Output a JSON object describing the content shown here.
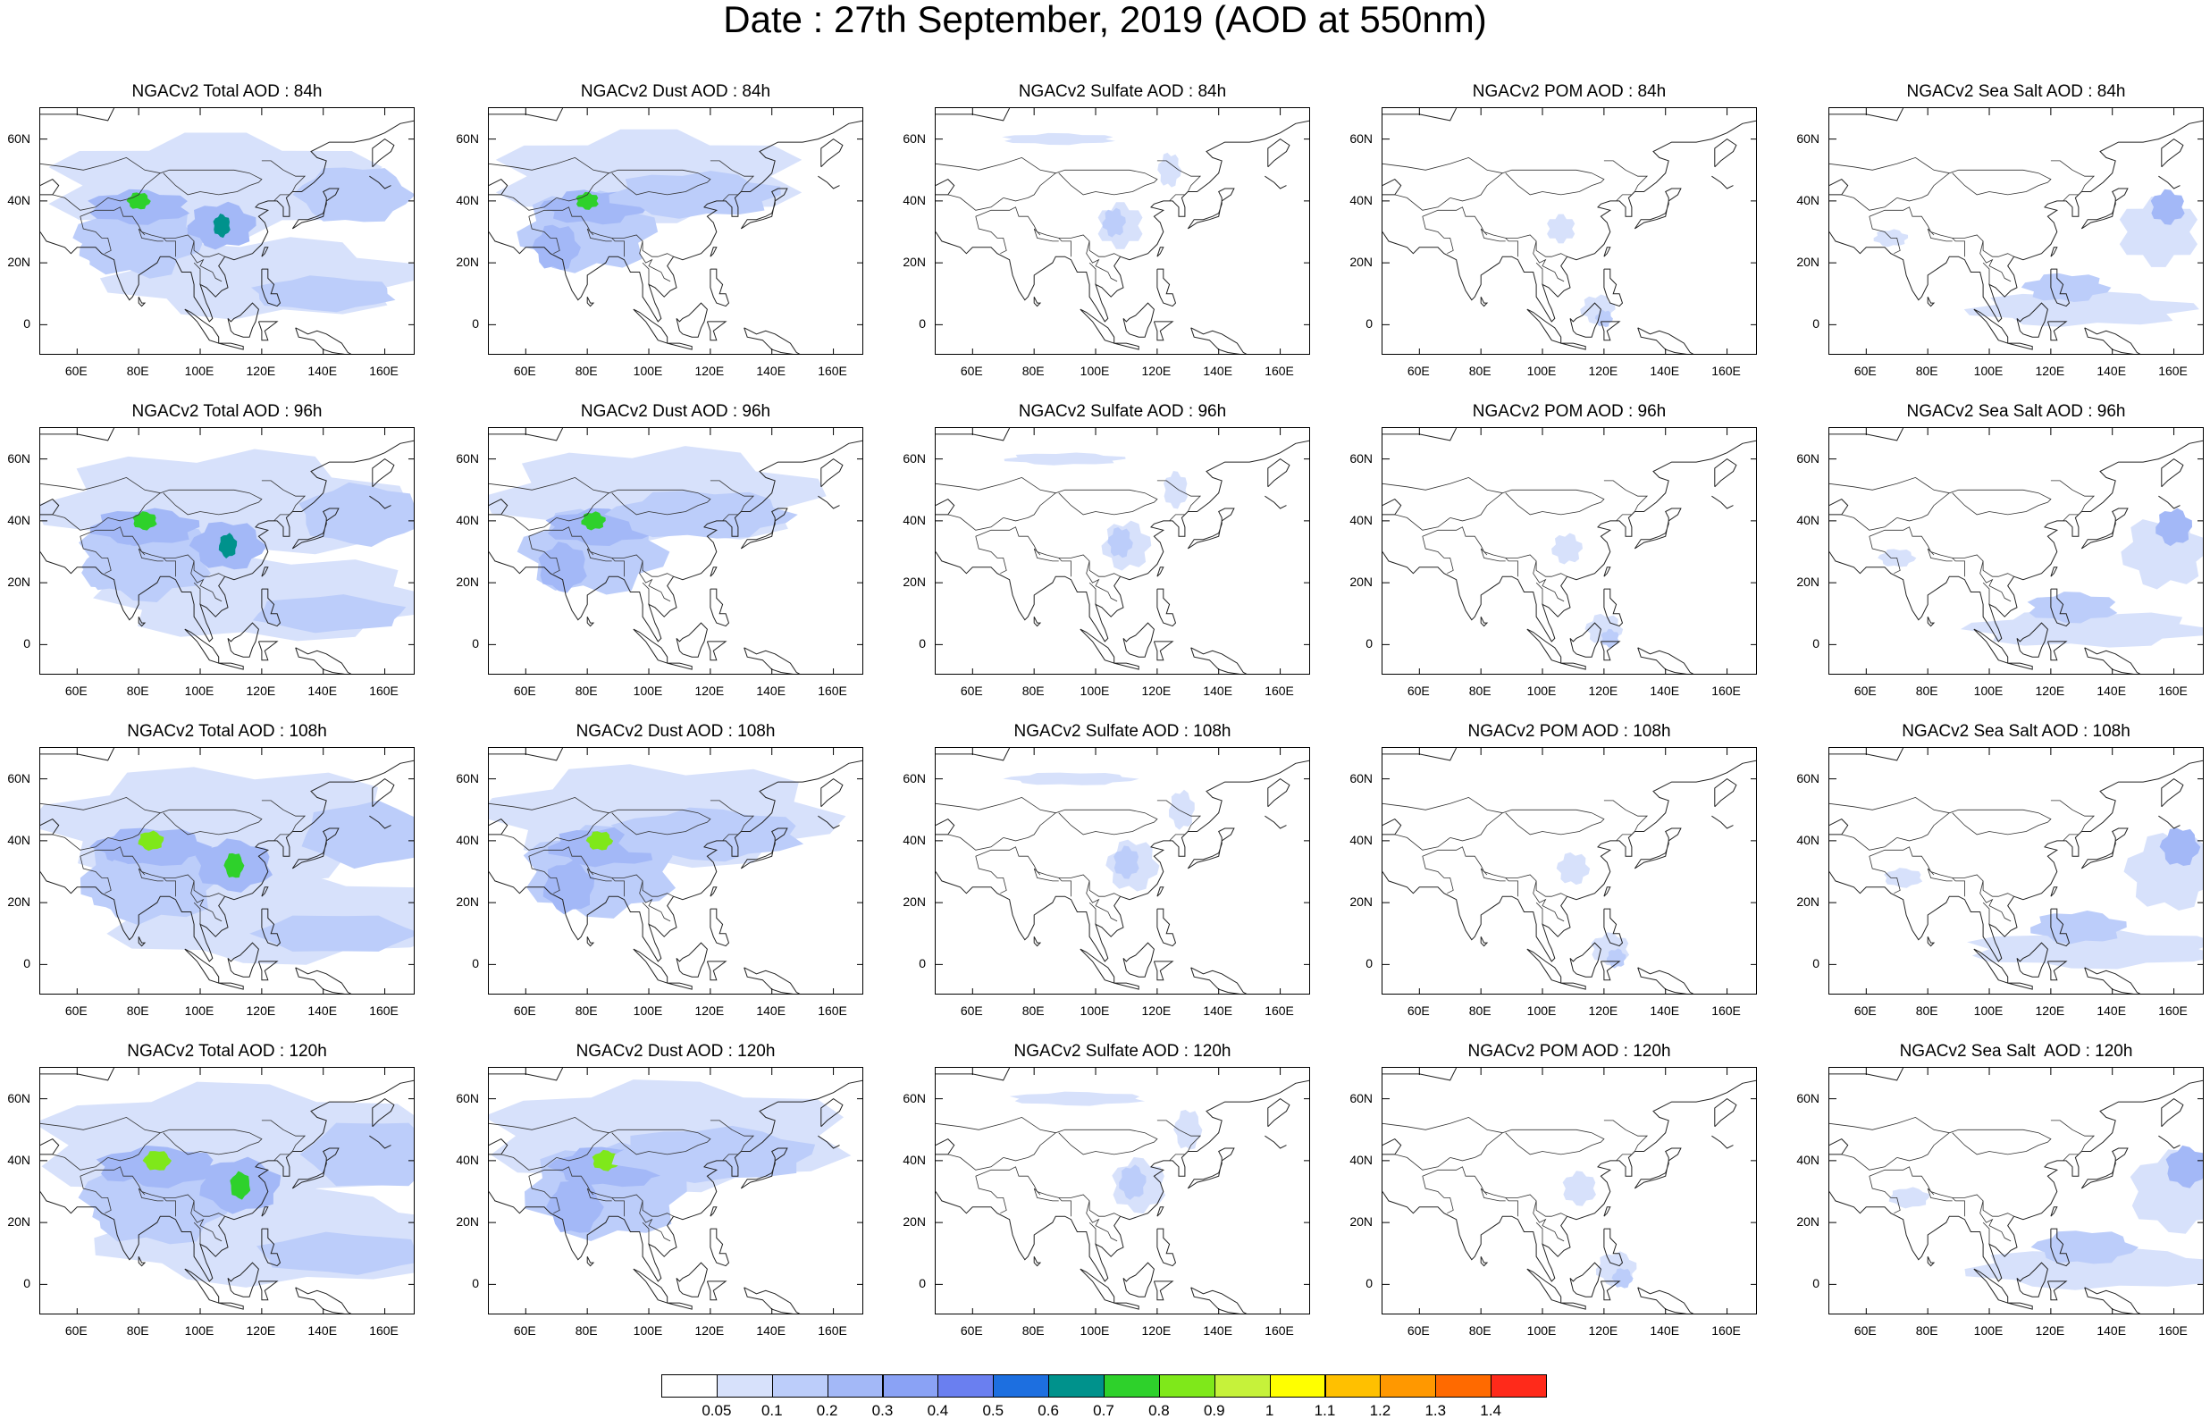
{
  "title": "Date : 27th September, 2019 (AOD at 550nm)",
  "lat_ticks": [
    "60N",
    "40N",
    "20N",
    "0"
  ],
  "lon_ticks": [
    "60E",
    "80E",
    "100E",
    "120E",
    "140E",
    "160E"
  ],
  "rows": [
    [
      "NGACv2 Total AOD : 84h",
      "NGACv2 Dust AOD : 84h",
      "NGACv2 Sulfate AOD : 84h",
      "NGACv2 POM AOD : 84h",
      "NGACv2 Sea Salt AOD : 84h"
    ],
    [
      "NGACv2 Total AOD : 96h",
      "NGACv2 Dust AOD : 96h",
      "NGACv2 Sulfate AOD : 96h",
      "NGACv2 POM AOD : 96h",
      "NGACv2 Sea Salt AOD : 96h"
    ],
    [
      "NGACv2 Total AOD : 108h",
      "NGACv2 Dust AOD : 108h",
      "NGACv2 Sulfate AOD : 108h",
      "NGACv2 POM AOD : 108h",
      "NGACv2 Sea Salt AOD : 108h"
    ],
    [
      "NGACv2 Total AOD : 120h",
      "NGACv2 Dust AOD : 120h",
      "NGACv2 Sulfate AOD : 120h",
      "NGACv2 POM AOD : 120h",
      "NGACv2 Sea Salt  AOD : 120h"
    ]
  ],
  "colorbar": {
    "labels": [
      "0.05",
      "0.1",
      "0.2",
      "0.3",
      "0.4",
      "0.5",
      "0.6",
      "0.7",
      "0.8",
      "0.9",
      "1",
      "1.1",
      "1.2",
      "1.3",
      "1.4"
    ],
    "colors": [
      "#ffffff",
      "#d7e1fb",
      "#bccdfa",
      "#a3b8f7",
      "#8aa2f5",
      "#6a7ff0",
      "#1d6fe0",
      "#00928c",
      "#2ed12b",
      "#7fe81a",
      "#c6f23a",
      "#ffff00",
      "#ffc000",
      "#ff9800",
      "#ff6a00",
      "#ff2a1a"
    ]
  }
}
